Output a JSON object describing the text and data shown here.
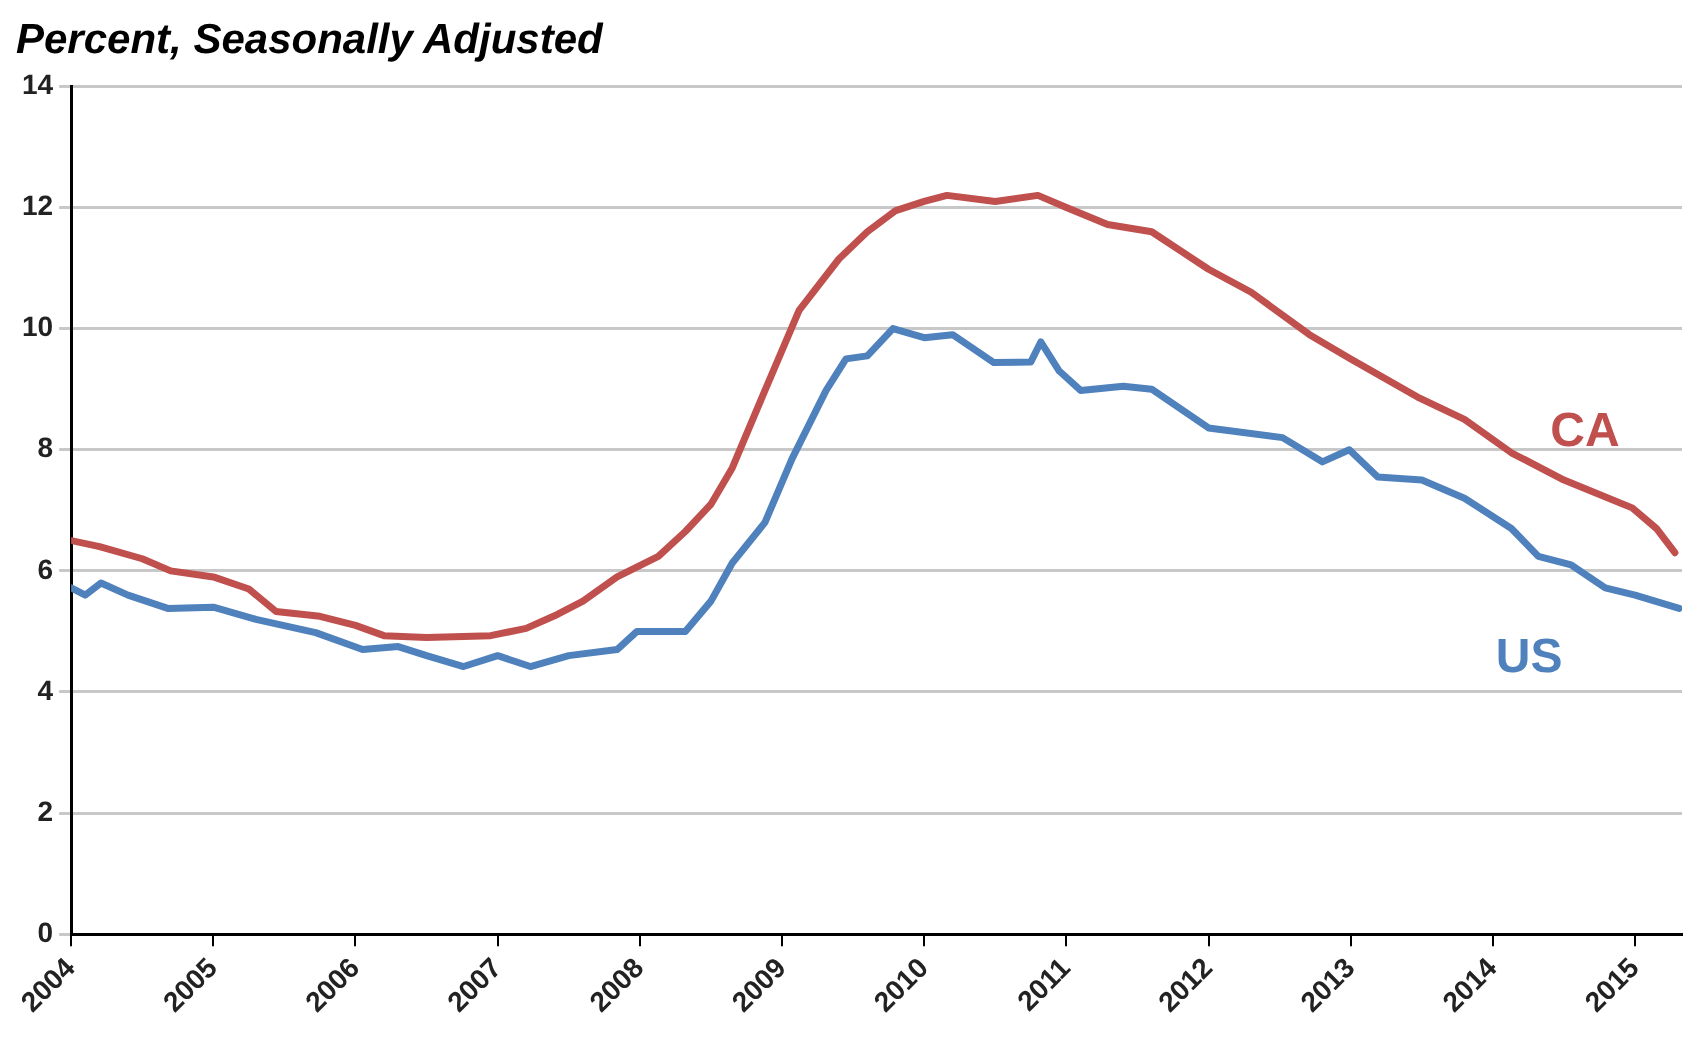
{
  "chart_data": {
    "type": "line",
    "title": "Percent, Seasonally Adjusted",
    "xlim": [
      2004,
      2015.33
    ],
    "xticks": [
      2004,
      2005,
      2006,
      2007,
      2008,
      2009,
      2010,
      2011,
      2012,
      2013,
      2014,
      2015
    ],
    "ylim": [
      0,
      14
    ],
    "yticks": [
      0,
      2,
      4,
      6,
      8,
      10,
      12,
      14
    ],
    "grid": "y",
    "legend": false,
    "marker": "none",
    "line_style": "solid",
    "series": [
      {
        "name": "CA",
        "color": "#c0504d",
        "x": [
          2004,
          2004.2,
          2004.5,
          2004.7,
          2005,
          2005.25,
          2005.44,
          2005.75,
          2006,
          2006.2,
          2006.5,
          2006.95,
          2007.2,
          2007.42,
          2007.6,
          2007.84,
          2008.13,
          2008.32,
          2008.5,
          2008.65,
          2008.88,
          2009.12,
          2009.4,
          2009.6,
          2009.8,
          2010,
          2010.16,
          2010.5,
          2010.8,
          2011,
          2011.29,
          2011.6,
          2012,
          2012.3,
          2012.71,
          2013,
          2013.47,
          2013.8,
          2014.13,
          2014.5,
          2014.98,
          2015.15,
          2015.28
        ],
        "values": [
          6.5,
          6.4,
          6.2,
          6.0,
          5.9,
          5.7,
          5.33,
          5.25,
          5.1,
          4.93,
          4.9,
          4.93,
          5.05,
          5.28,
          5.5,
          5.9,
          6.24,
          6.65,
          7.1,
          7.7,
          8.98,
          10.3,
          11.15,
          11.6,
          11.95,
          12.1,
          12.2,
          12.1,
          12.2,
          12.0,
          11.72,
          11.6,
          10.98,
          10.6,
          9.9,
          9.5,
          8.87,
          8.5,
          7.95,
          7.5,
          7.04,
          6.7,
          6.3
        ]
      },
      {
        "name": "US",
        "color": "#4f81bd",
        "x": [
          2004,
          2004.1,
          2004.21,
          2004.4,
          2004.68,
          2005,
          2005.3,
          2005.72,
          2006.05,
          2006.3,
          2006.5,
          2006.76,
          2007,
          2007.23,
          2007.5,
          2007.84,
          2007.98,
          2008.15,
          2008.32,
          2008.5,
          2008.65,
          2008.88,
          2009.07,
          2009.31,
          2009.45,
          2009.6,
          2009.78,
          2010,
          2010.2,
          2010.49,
          2010.75,
          2010.82,
          2010.95,
          2011.1,
          2011.4,
          2011.6,
          2012,
          2012.52,
          2012.8,
          2012.99,
          2013.19,
          2013.5,
          2013.8,
          2014.13,
          2014.32,
          2014.55,
          2014.79,
          2015,
          2015.31
        ],
        "values": [
          5.72,
          5.6,
          5.8,
          5.6,
          5.38,
          5.4,
          5.2,
          4.98,
          4.7,
          4.75,
          4.6,
          4.42,
          4.6,
          4.42,
          4.6,
          4.7,
          5.0,
          5.0,
          5.0,
          5.5,
          6.13,
          6.8,
          7.85,
          8.98,
          9.5,
          9.55,
          10.0,
          9.85,
          9.9,
          9.44,
          9.45,
          9.78,
          9.3,
          8.98,
          9.05,
          9.0,
          8.36,
          8.2,
          7.8,
          8.0,
          7.55,
          7.5,
          7.2,
          6.7,
          6.24,
          6.1,
          5.72,
          5.6,
          5.38
        ]
      }
    ]
  }
}
